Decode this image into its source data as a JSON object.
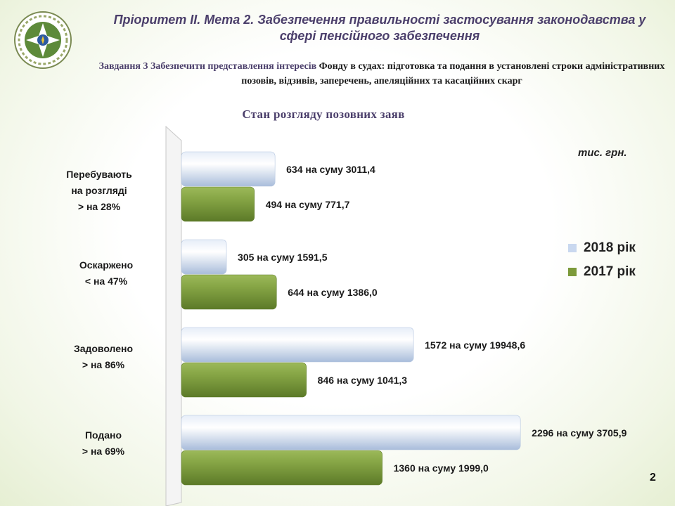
{
  "header": {
    "title": "Пріоритет ІІ. Мета 2. Забезпечення правильності застосування законодавства у сфері пенсійного забезпечення",
    "subtitle_highlight": "Завдання 3 Забезпечити представлення інтересів",
    "subtitle_rest": " Фонду в судах:  підготовка та подання в установлені строки адміністративних позовів, відзивів, заперечень, апеляційних та касаційних скарг"
  },
  "unit": "тис. грн.",
  "page_number": "2",
  "colors": {
    "series_2018": "#c9d8ef",
    "series_2017": "#7c9a3a",
    "title": "#4b3f6b"
  },
  "logo": {
    "icon": "pension-fund-emblem-icon"
  },
  "chart_data": {
    "type": "bar",
    "orientation": "horizontal",
    "title": "Стан розгляду позовних заяв",
    "categories": [
      {
        "line1": "Перебувають",
        "line2": "на розгляді",
        "line3": "> на 28%"
      },
      {
        "line1": "Оскаржено",
        "line2": "< на 47%",
        "line3": ""
      },
      {
        "line1": "Задоволено",
        "line2": "> на 86%",
        "line3": ""
      },
      {
        "line1": "Подано",
        "line2": "> на 69%",
        "line3": ""
      }
    ],
    "series": [
      {
        "name": "2018 рік",
        "color": "#c9d8ef",
        "values": [
          634,
          305,
          1572,
          2296
        ],
        "labels": [
          "634 на суму 3011,4",
          "305  на суму 1591,5",
          "1572  на суму 19948,6",
          "2296 на суму 3705,9"
        ]
      },
      {
        "name": "2017 рік",
        "color": "#7c9a3a",
        "values": [
          494,
          644,
          846,
          1360
        ],
        "labels": [
          "494  на суму 771,7",
          "644  на суму 1386,0",
          "846  на суму 1041,3",
          "1360 на суму 1999,0"
        ]
      }
    ],
    "xlim": [
      0,
      2500
    ],
    "grid": false,
    "legend_position": "right"
  }
}
